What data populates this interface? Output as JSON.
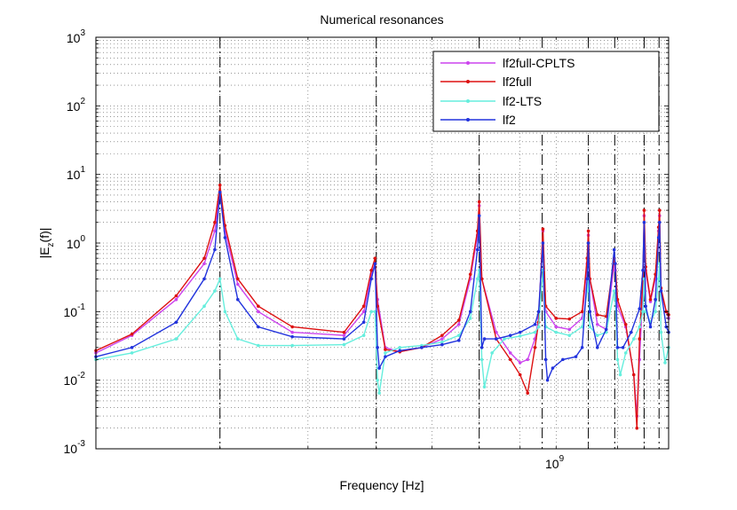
{
  "chart_data": {
    "type": "line",
    "title": "Numerical resonances",
    "xlabel": "Frequency [Hz]",
    "ylabel_main": "|E",
    "ylabel_sub": "z",
    "ylabel_tail": "(f)|",
    "x_scale": "log",
    "y_scale": "log",
    "xlim": [
      200000000,
      1300000000
    ],
    "ylim": [
      0.001,
      1000
    ],
    "x_tick_label": {
      "base": "10",
      "exp": "9",
      "value": 1000000000
    },
    "y_tick_labels": [
      {
        "base": "10",
        "exp": "-3",
        "value": 0.001
      },
      {
        "base": "10",
        "exp": "-2",
        "value": 0.01
      },
      {
        "base": "10",
        "exp": "-1",
        "value": 0.1
      },
      {
        "base": "10",
        "exp": "0",
        "value": 1
      },
      {
        "base": "10",
        "exp": "1",
        "value": 10
      },
      {
        "base": "10",
        "exp": "2",
        "value": 100
      },
      {
        "base": "10",
        "exp": "3",
        "value": 1000
      }
    ],
    "grid": true,
    "resonances": [
      300000000,
      500000000,
      700000000,
      860000000,
      1000000000,
      1090000000,
      1200000000,
      1260000000
    ],
    "legend_position": "top-right",
    "series": [
      {
        "name": "lf2full-CPLTS",
        "color": "#cc44ee",
        "points": [
          [
            200000000,
            0.025
          ],
          [
            225000000,
            0.045
          ],
          [
            260000000,
            0.15
          ],
          [
            285000000,
            0.5
          ],
          [
            295000000,
            1.5
          ],
          [
            300000000,
            5.5
          ],
          [
            305000000,
            1.5
          ],
          [
            318000000,
            0.25
          ],
          [
            340000000,
            0.1
          ],
          [
            380000000,
            0.05
          ],
          [
            450000000,
            0.045
          ],
          [
            480000000,
            0.1
          ],
          [
            492000000,
            0.35
          ],
          [
            498000000,
            0.5
          ],
          [
            502000000,
            0.15
          ],
          [
            515000000,
            0.03
          ],
          [
            540000000,
            0.026
          ],
          [
            580000000,
            0.03
          ],
          [
            620000000,
            0.04
          ],
          [
            655000000,
            0.065
          ],
          [
            680000000,
            0.3
          ],
          [
            696000000,
            1.3
          ],
          [
            700000000,
            3.5
          ],
          [
            706000000,
            0.3
          ],
          [
            740000000,
            0.05
          ],
          [
            775000000,
            0.025
          ],
          [
            800000000,
            0.018
          ],
          [
            820000000,
            0.02
          ],
          [
            840000000,
            0.04
          ],
          [
            850000000,
            0.08
          ],
          [
            862000000,
            1.5
          ],
          [
            870000000,
            0.1
          ],
          [
            900000000,
            0.06
          ],
          [
            940000000,
            0.055
          ],
          [
            980000000,
            0.08
          ],
          [
            996000000,
            0.5
          ],
          [
            1000000000,
            1.3
          ],
          [
            1005000000,
            0.3
          ],
          [
            1030000000,
            0.065
          ],
          [
            1060000000,
            0.055
          ],
          [
            1088000000,
            0.5
          ],
          [
            1092000000,
            0.4
          ],
          [
            1100000000,
            0.12
          ],
          [
            1130000000,
            0.06
          ],
          [
            1160000000,
            0.012
          ],
          [
            1172000000,
            0.003
          ],
          [
            1182000000,
            0.02
          ],
          [
            1195000000,
            0.2
          ],
          [
            1200000000,
            2.5
          ],
          [
            1206000000,
            0.4
          ],
          [
            1225000000,
            0.14
          ],
          [
            1245000000,
            0.3
          ],
          [
            1258000000,
            1.5
          ],
          [
            1262000000,
            2.5
          ],
          [
            1268000000,
            0.2
          ],
          [
            1290000000,
            0.1
          ],
          [
            1300000000,
            0.08
          ]
        ]
      },
      {
        "name": "lf2full",
        "color": "#dd1111",
        "points": [
          [
            200000000,
            0.027
          ],
          [
            225000000,
            0.047
          ],
          [
            260000000,
            0.17
          ],
          [
            285000000,
            0.6
          ],
          [
            295000000,
            2
          ],
          [
            300000000,
            7
          ],
          [
            305000000,
            1.8
          ],
          [
            318000000,
            0.3
          ],
          [
            340000000,
            0.12
          ],
          [
            380000000,
            0.06
          ],
          [
            450000000,
            0.05
          ],
          [
            480000000,
            0.12
          ],
          [
            492000000,
            0.4
          ],
          [
            498000000,
            0.6
          ],
          [
            502000000,
            0.12
          ],
          [
            515000000,
            0.028
          ],
          [
            540000000,
            0.026
          ],
          [
            580000000,
            0.03
          ],
          [
            620000000,
            0.045
          ],
          [
            655000000,
            0.075
          ],
          [
            680000000,
            0.35
          ],
          [
            696000000,
            1.5
          ],
          [
            700000000,
            4
          ],
          [
            706000000,
            0.3
          ],
          [
            740000000,
            0.04
          ],
          [
            775000000,
            0.02
          ],
          [
            800000000,
            0.012
          ],
          [
            820000000,
            0.0065
          ],
          [
            840000000,
            0.03
          ],
          [
            850000000,
            0.07
          ],
          [
            862000000,
            1.6
          ],
          [
            870000000,
            0.12
          ],
          [
            900000000,
            0.08
          ],
          [
            940000000,
            0.078
          ],
          [
            980000000,
            0.1
          ],
          [
            996000000,
            0.6
          ],
          [
            1000000000,
            1.5
          ],
          [
            1005000000,
            0.3
          ],
          [
            1030000000,
            0.09
          ],
          [
            1060000000,
            0.085
          ],
          [
            1088000000,
            0.6
          ],
          [
            1092000000,
            0.5
          ],
          [
            1100000000,
            0.15
          ],
          [
            1130000000,
            0.065
          ],
          [
            1160000000,
            0.012
          ],
          [
            1172000000,
            0.002
          ],
          [
            1182000000,
            0.04
          ],
          [
            1195000000,
            0.3
          ],
          [
            1200000000,
            3
          ],
          [
            1206000000,
            0.45
          ],
          [
            1225000000,
            0.15
          ],
          [
            1245000000,
            0.35
          ],
          [
            1258000000,
            1.7
          ],
          [
            1262000000,
            3
          ],
          [
            1268000000,
            0.22
          ],
          [
            1290000000,
            0.1
          ],
          [
            1300000000,
            0.09
          ]
        ]
      },
      {
        "name": "lf2-LTS",
        "color": "#66eedd",
        "points": [
          [
            200000000,
            0.02
          ],
          [
            225000000,
            0.025
          ],
          [
            260000000,
            0.04
          ],
          [
            285000000,
            0.12
          ],
          [
            295000000,
            0.2
          ],
          [
            300000000,
            0.3
          ],
          [
            305000000,
            0.1
          ],
          [
            318000000,
            0.04
          ],
          [
            340000000,
            0.032
          ],
          [
            380000000,
            0.032
          ],
          [
            450000000,
            0.033
          ],
          [
            480000000,
            0.045
          ],
          [
            492000000,
            0.1
          ],
          [
            498000000,
            0.1
          ],
          [
            502000000,
            0.01
          ],
          [
            505000000,
            0.0065
          ],
          [
            515000000,
            0.025
          ],
          [
            540000000,
            0.03
          ],
          [
            580000000,
            0.032
          ],
          [
            620000000,
            0.036
          ],
          [
            655000000,
            0.045
          ],
          [
            680000000,
            0.08
          ],
          [
            696000000,
            0.3
          ],
          [
            700000000,
            0.4
          ],
          [
            706000000,
            0.02
          ],
          [
            712000000,
            0.008
          ],
          [
            730000000,
            0.025
          ],
          [
            760000000,
            0.04
          ],
          [
            800000000,
            0.044
          ],
          [
            840000000,
            0.05
          ],
          [
            850000000,
            0.06
          ],
          [
            862000000,
            0.4
          ],
          [
            870000000,
            0.06
          ],
          [
            900000000,
            0.05
          ],
          [
            940000000,
            0.045
          ],
          [
            980000000,
            0.06
          ],
          [
            996000000,
            0.2
          ],
          [
            1000000000,
            0.3
          ],
          [
            1005000000,
            0.06
          ],
          [
            1030000000,
            0.045
          ],
          [
            1060000000,
            0.05
          ],
          [
            1088000000,
            0.2
          ],
          [
            1092000000,
            0.15
          ],
          [
            1100000000,
            0.02
          ],
          [
            1110000000,
            0.012
          ],
          [
            1130000000,
            0.025
          ],
          [
            1160000000,
            0.04
          ],
          [
            1182000000,
            0.06
          ],
          [
            1195000000,
            0.1
          ],
          [
            1200000000,
            0.3
          ],
          [
            1206000000,
            0.1
          ],
          [
            1225000000,
            0.07
          ],
          [
            1245000000,
            0.1
          ],
          [
            1258000000,
            0.3
          ],
          [
            1262000000,
            0.5
          ],
          [
            1268000000,
            0.05
          ],
          [
            1285000000,
            0.018
          ],
          [
            1300000000,
            0.03
          ]
        ]
      },
      {
        "name": "lf2",
        "color": "#2233dd",
        "points": [
          [
            200000000,
            0.022
          ],
          [
            225000000,
            0.03
          ],
          [
            260000000,
            0.07
          ],
          [
            285000000,
            0.3
          ],
          [
            295000000,
            0.8
          ],
          [
            300000000,
            5.5
          ],
          [
            305000000,
            1.2
          ],
          [
            318000000,
            0.15
          ],
          [
            340000000,
            0.06
          ],
          [
            380000000,
            0.043
          ],
          [
            450000000,
            0.04
          ],
          [
            480000000,
            0.07
          ],
          [
            492000000,
            0.3
          ],
          [
            498000000,
            0.5
          ],
          [
            502000000,
            0.03
          ],
          [
            505000000,
            0.015
          ],
          [
            515000000,
            0.022
          ],
          [
            540000000,
            0.027
          ],
          [
            580000000,
            0.03
          ],
          [
            620000000,
            0.033
          ],
          [
            655000000,
            0.038
          ],
          [
            680000000,
            0.1
          ],
          [
            696000000,
            0.8
          ],
          [
            700000000,
            2.5
          ],
          [
            706000000,
            0.03
          ],
          [
            712000000,
            0.04
          ],
          [
            740000000,
            0.04
          ],
          [
            775000000,
            0.045
          ],
          [
            800000000,
            0.05
          ],
          [
            840000000,
            0.065
          ],
          [
            850000000,
            0.1
          ],
          [
            862000000,
            1
          ],
          [
            870000000,
            0.02
          ],
          [
            875000000,
            0.01
          ],
          [
            890000000,
            0.015
          ],
          [
            920000000,
            0.02
          ],
          [
            960000000,
            0.022
          ],
          [
            980000000,
            0.03
          ],
          [
            996000000,
            0.3
          ],
          [
            1000000000,
            1
          ],
          [
            1005000000,
            0.1
          ],
          [
            1030000000,
            0.03
          ],
          [
            1060000000,
            0.055
          ],
          [
            1088000000,
            0.8
          ],
          [
            1092000000,
            0.5
          ],
          [
            1100000000,
            0.03
          ],
          [
            1120000000,
            0.03
          ],
          [
            1150000000,
            0.05
          ],
          [
            1182000000,
            0.11
          ],
          [
            1195000000,
            0.4
          ],
          [
            1200000000,
            2
          ],
          [
            1206000000,
            0.12
          ],
          [
            1225000000,
            0.06
          ],
          [
            1245000000,
            0.15
          ],
          [
            1258000000,
            1.2
          ],
          [
            1262000000,
            2
          ],
          [
            1268000000,
            0.2
          ],
          [
            1290000000,
            0.06
          ],
          [
            1300000000,
            0.05
          ]
        ]
      }
    ]
  }
}
